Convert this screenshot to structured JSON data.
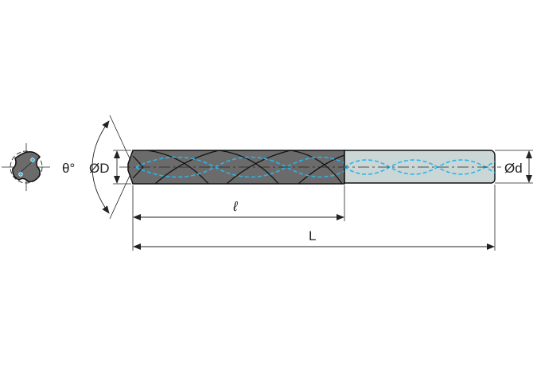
{
  "labels": {
    "angle": "θ°",
    "body_diameter": "ØD",
    "shank_diameter": "Ød",
    "flute_length": "ℓ",
    "overall_length": "L"
  },
  "colors": {
    "body": "#6b6b6b",
    "shank": "#cbd6d6",
    "coolant": "#29b6e8",
    "line": "#222222"
  }
}
